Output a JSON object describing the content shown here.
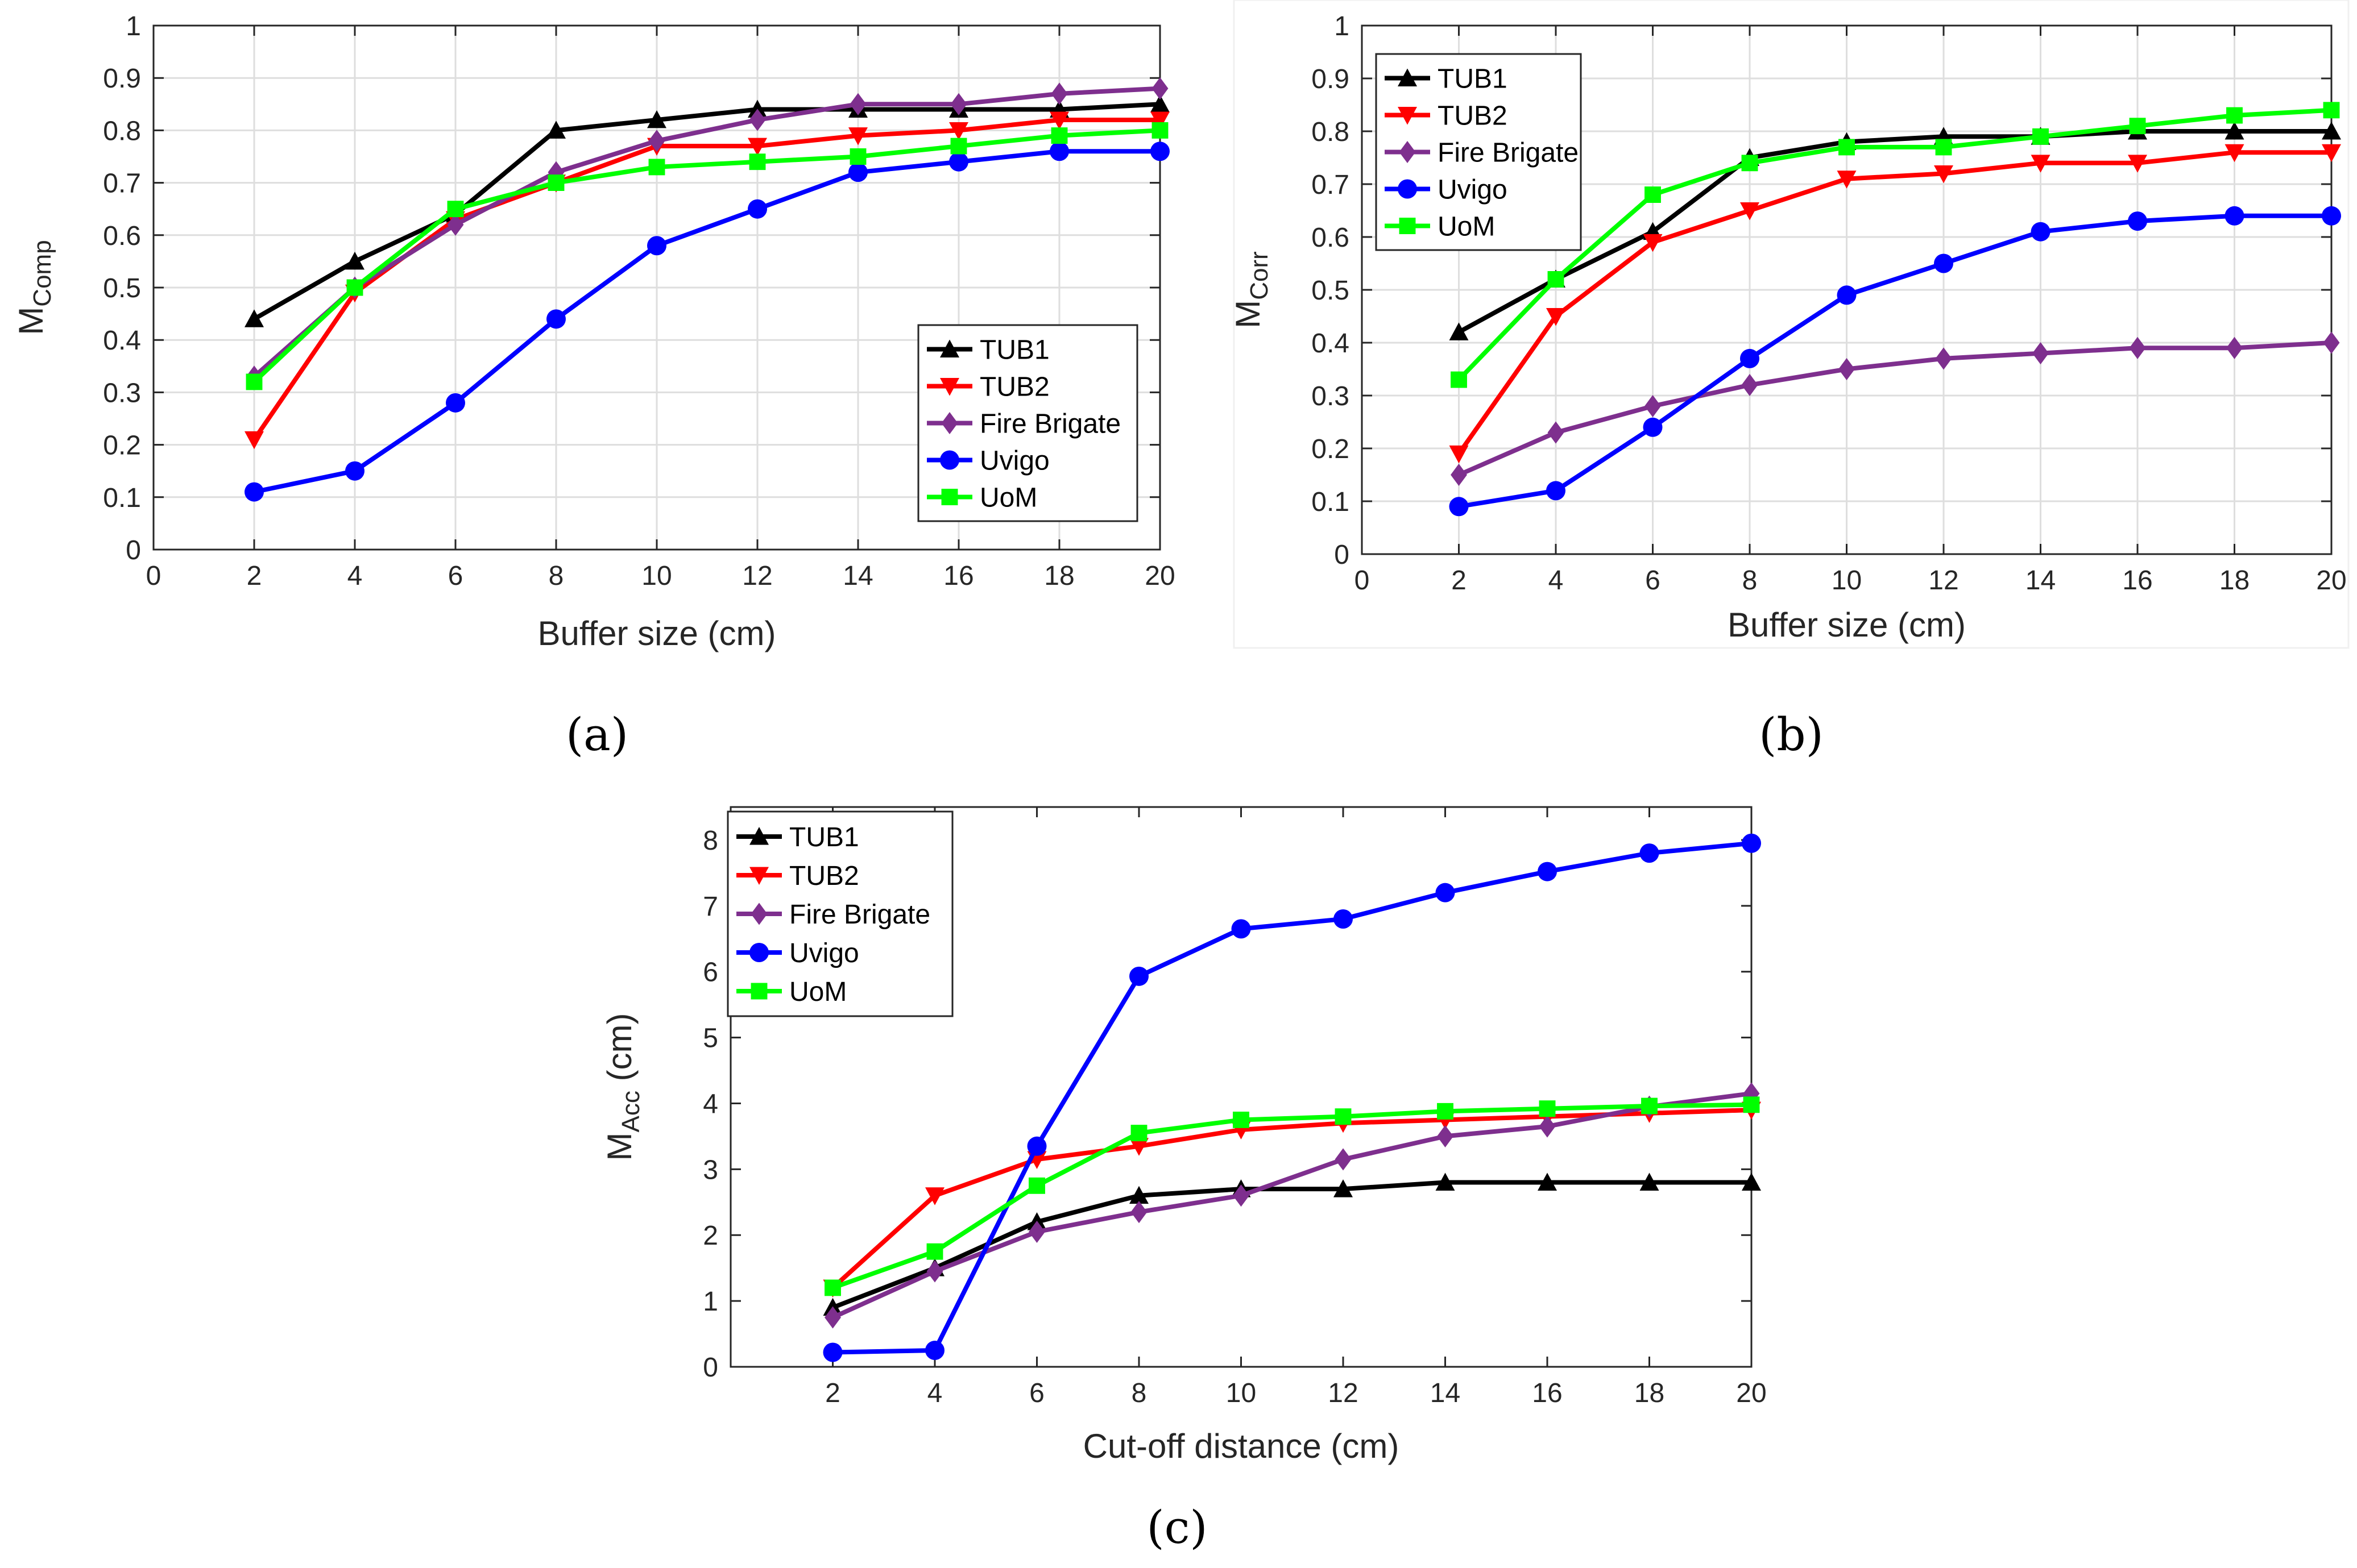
{
  "colors": {
    "TUB1": "#000000",
    "TUB2": "#ff0000",
    "Fire Brigate": "#7e2f8e",
    "Uvigo": "#0000ff",
    "UoM": "#00ff00"
  },
  "markers": {
    "TUB1": "triangle-up",
    "TUB2": "triangle-down",
    "Fire Brigate": "diamond",
    "Uvigo": "circle",
    "UoM": "square"
  },
  "chart_data": [
    {
      "type": "line",
      "caption": "(a)",
      "xlabel": "Buffer size (cm)",
      "ylabel_main": "M",
      "ylabel_sub": "Comp",
      "xlim": [
        0,
        20
      ],
      "ylim": [
        0,
        1
      ],
      "xticks": [
        "0",
        "2",
        "4",
        "6",
        "8",
        "10",
        "12",
        "14",
        "16",
        "18",
        "20"
      ],
      "yticks": [
        "0",
        "0.1",
        "0.2",
        "0.3",
        "0.4",
        "0.5",
        "0.6",
        "0.7",
        "0.8",
        "0.9",
        "1"
      ],
      "grid": true,
      "legend_position": "lower-right",
      "x": [
        2,
        4,
        6,
        8,
        10,
        12,
        14,
        16,
        18,
        20
      ],
      "series": [
        {
          "name": "TUB1",
          "values": [
            0.44,
            0.55,
            0.64,
            0.8,
            0.82,
            0.84,
            0.84,
            0.84,
            0.84,
            0.85
          ]
        },
        {
          "name": "TUB2",
          "values": [
            0.21,
            0.49,
            0.63,
            0.7,
            0.77,
            0.77,
            0.79,
            0.8,
            0.82,
            0.82
          ]
        },
        {
          "name": "Fire Brigate",
          "values": [
            0.33,
            0.5,
            0.62,
            0.72,
            0.78,
            0.82,
            0.85,
            0.85,
            0.87,
            0.88
          ]
        },
        {
          "name": "Uvigo",
          "values": [
            0.11,
            0.15,
            0.28,
            0.44,
            0.58,
            0.65,
            0.72,
            0.74,
            0.76,
            0.76
          ]
        },
        {
          "name": "UoM",
          "values": [
            0.32,
            0.5,
            0.65,
            0.7,
            0.73,
            0.74,
            0.75,
            0.77,
            0.79,
            0.8
          ]
        }
      ]
    },
    {
      "type": "line",
      "caption": "(b)",
      "xlabel": "Buffer size (cm)",
      "ylabel_main": "M",
      "ylabel_sub": "Corr",
      "xlim": [
        0,
        20
      ],
      "ylim": [
        0,
        1
      ],
      "xticks": [
        "0",
        "2",
        "4",
        "6",
        "8",
        "10",
        "12",
        "14",
        "16",
        "18",
        "20"
      ],
      "yticks": [
        "0",
        "0.1",
        "0.2",
        "0.3",
        "0.4",
        "0.5",
        "0.6",
        "0.7",
        "0.8",
        "0.9",
        "1"
      ],
      "grid": true,
      "legend_position": "upper-left",
      "x": [
        2,
        4,
        6,
        8,
        10,
        12,
        14,
        16,
        18,
        20
      ],
      "series": [
        {
          "name": "TUB1",
          "values": [
            0.42,
            0.52,
            0.61,
            0.75,
            0.78,
            0.79,
            0.79,
            0.8,
            0.8,
            0.8
          ]
        },
        {
          "name": "TUB2",
          "values": [
            0.19,
            0.45,
            0.59,
            0.65,
            0.71,
            0.72,
            0.74,
            0.74,
            0.76,
            0.76
          ]
        },
        {
          "name": "Fire Brigate",
          "values": [
            0.15,
            0.23,
            0.28,
            0.32,
            0.35,
            0.37,
            0.38,
            0.39,
            0.39,
            0.4
          ]
        },
        {
          "name": "Uvigo",
          "values": [
            0.09,
            0.12,
            0.24,
            0.37,
            0.49,
            0.55,
            0.61,
            0.63,
            0.64,
            0.64
          ]
        },
        {
          "name": "UoM",
          "values": [
            0.33,
            0.52,
            0.68,
            0.74,
            0.77,
            0.77,
            0.79,
            0.81,
            0.83,
            0.84
          ]
        }
      ]
    },
    {
      "type": "line",
      "caption": "(c)",
      "xlabel": "Cut-off distance (cm)",
      "ylabel_main": "M",
      "ylabel_sub": "Acc",
      "ylabel_suffix": " (cm)",
      "xlim": [
        0,
        20
      ],
      "ylim": [
        0,
        8.5
      ],
      "xticks": [
        "2",
        "4",
        "6",
        "8",
        "10",
        "12",
        "14",
        "16",
        "18",
        "20"
      ],
      "yticks": [
        "0",
        "1",
        "2",
        "3",
        "4",
        "5",
        "6",
        "7",
        "8"
      ],
      "grid": false,
      "legend_position": "upper-left",
      "x": [
        2,
        4,
        6,
        8,
        10,
        12,
        14,
        16,
        18,
        20
      ],
      "series": [
        {
          "name": "TUB1",
          "values": [
            0.9,
            1.5,
            2.2,
            2.6,
            2.7,
            2.7,
            2.8,
            2.8,
            2.8,
            2.8
          ]
        },
        {
          "name": "TUB2",
          "values": [
            1.2,
            2.6,
            3.15,
            3.35,
            3.6,
            3.7,
            3.75,
            3.8,
            3.85,
            3.9
          ]
        },
        {
          "name": "Fire Brigate",
          "values": [
            0.75,
            1.45,
            2.05,
            2.35,
            2.6,
            3.15,
            3.5,
            3.65,
            3.95,
            4.15
          ]
        },
        {
          "name": "Uvigo",
          "values": [
            0.22,
            0.25,
            3.35,
            5.93,
            6.65,
            6.8,
            7.2,
            7.52,
            7.8,
            7.95
          ]
        },
        {
          "name": "UoM",
          "values": [
            1.2,
            1.75,
            2.75,
            3.55,
            3.75,
            3.8,
            3.88,
            3.92,
            3.96,
            3.98
          ]
        }
      ]
    }
  ]
}
